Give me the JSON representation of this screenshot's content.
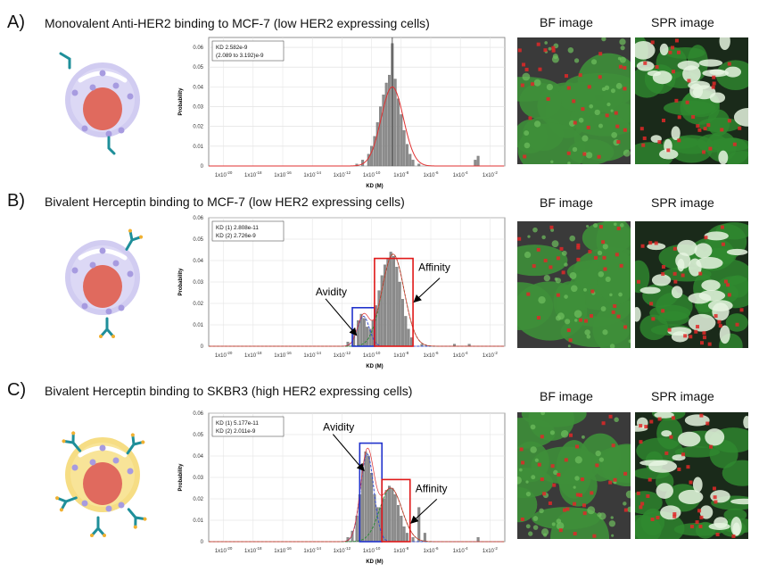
{
  "colors": {
    "hist": "#8c8c8c",
    "fit_total": "#e03030",
    "fit_green": "#2e8b3a",
    "fit_blue": "#3a4fd0",
    "box_red": "#e01818",
    "box_blue": "#2233cc",
    "bf_green": "#3e8f3a",
    "cell_purple": "#c9c3ee",
    "cell_yellow": "#f5d76e",
    "nucleus": "#e06a5e",
    "antibody": "#1f8f9a"
  },
  "labels": {
    "bf": "BF image",
    "spr": "SPR image",
    "xlabel": "KD (M)",
    "ylabel": "Probability"
  },
  "panels": [
    {
      "letter": "A)",
      "title": "Monovalent Anti-HER2 binding to MCF-7 (low HER2 expressing cells)",
      "legend": [
        "KD 2.582e-9",
        "(2.089 to 3.192)e-9"
      ],
      "cell": "purple-monovalent"
    },
    {
      "letter": "B)",
      "title": "Bivalent Herceptin binding to MCF-7 (low HER2 expressing cells)",
      "legend": [
        "KD (1) 2.808e-11",
        "KD (2) 2.726e-9"
      ],
      "annotations": [
        "Avidity",
        "Affinity"
      ],
      "cell": "purple-bivalent"
    },
    {
      "letter": "C)",
      "title": "Bivalent Herceptin binding to SKBR3 (high HER2 expressing cells)",
      "legend": [
        "KD (1) 5.177e-11",
        "KD (2) 2.011e-9"
      ],
      "annotations": [
        "Avidity",
        "Affinity"
      ],
      "cell": "yellow-bivalent"
    }
  ],
  "chart_data": [
    {
      "type": "bar",
      "xscale": "log10",
      "x_tick_exponents": [
        -20,
        -18,
        -16,
        -14,
        -12,
        -10,
        -8,
        -6,
        -4,
        -2
      ],
      "xlabel": "KD (M)",
      "ylabel": "Probability",
      "ylim": [
        0,
        0.065
      ],
      "y_ticks": [
        0,
        0.01,
        0.02,
        0.03,
        0.04,
        0.05,
        0.06
      ],
      "grid": true,
      "legend_position": "top-left",
      "fits": [
        {
          "color": "red",
          "mu_log10": -8.6,
          "sigma_log10": 0.75,
          "peak": 0.04
        }
      ],
      "marker_line_log10": -8.6,
      "bins": [
        {
          "log10_kd": -11.0,
          "p": 0.001
        },
        {
          "log10_kd": -10.6,
          "p": 0.003
        },
        {
          "log10_kd": -10.2,
          "p": 0.006
        },
        {
          "log10_kd": -10.0,
          "p": 0.01
        },
        {
          "log10_kd": -9.8,
          "p": 0.015
        },
        {
          "log10_kd": -9.6,
          "p": 0.022
        },
        {
          "log10_kd": -9.4,
          "p": 0.03
        },
        {
          "log10_kd": -9.2,
          "p": 0.036
        },
        {
          "log10_kd": -9.0,
          "p": 0.042
        },
        {
          "log10_kd": -8.8,
          "p": 0.046
        },
        {
          "log10_kd": -8.6,
          "p": 0.062
        },
        {
          "log10_kd": -8.4,
          "p": 0.044
        },
        {
          "log10_kd": -8.2,
          "p": 0.034
        },
        {
          "log10_kd": -8.0,
          "p": 0.026
        },
        {
          "log10_kd": -7.8,
          "p": 0.018
        },
        {
          "log10_kd": -7.6,
          "p": 0.011
        },
        {
          "log10_kd": -7.4,
          "p": 0.006
        },
        {
          "log10_kd": -7.2,
          "p": 0.003
        },
        {
          "log10_kd": -6.8,
          "p": 0.001
        },
        {
          "log10_kd": -3.0,
          "p": 0.003
        },
        {
          "log10_kd": -2.8,
          "p": 0.005
        }
      ]
    },
    {
      "type": "bar",
      "xscale": "log10",
      "x_tick_exponents": [
        -20,
        -18,
        -16,
        -14,
        -12,
        -10,
        -8,
        -6,
        -4,
        -2
      ],
      "xlabel": "KD (M)",
      "ylabel": "Probability",
      "ylim": [
        0,
        0.06
      ],
      "y_ticks": [
        0,
        0.01,
        0.02,
        0.03,
        0.04,
        0.05,
        0.06
      ],
      "grid": true,
      "legend_position": "top-left",
      "fits": [
        {
          "color": "blue",
          "mu_log10": -10.55,
          "sigma_log10": 0.4,
          "peak": 0.014
        },
        {
          "color": "green",
          "mu_log10": -8.55,
          "sigma_log10": 0.75,
          "peak": 0.043
        }
      ],
      "boxes": [
        {
          "color": "blue",
          "x0_log10": -11.3,
          "x1_log10": -9.8,
          "y_top": 0.018
        },
        {
          "color": "red",
          "x0_log10": -9.8,
          "x1_log10": -7.2,
          "y_top": 0.041
        }
      ],
      "bins": [
        {
          "log10_kd": -11.6,
          "p": 0.002
        },
        {
          "log10_kd": -11.2,
          "p": 0.006
        },
        {
          "log10_kd": -10.9,
          "p": 0.012
        },
        {
          "log10_kd": -10.7,
          "p": 0.015
        },
        {
          "log10_kd": -10.5,
          "p": 0.013
        },
        {
          "log10_kd": -10.3,
          "p": 0.009
        },
        {
          "log10_kd": -10.1,
          "p": 0.008
        },
        {
          "log10_kd": -9.9,
          "p": 0.012
        },
        {
          "log10_kd": -9.7,
          "p": 0.019
        },
        {
          "log10_kd": -9.5,
          "p": 0.026
        },
        {
          "log10_kd": -9.3,
          "p": 0.033
        },
        {
          "log10_kd": -9.1,
          "p": 0.038
        },
        {
          "log10_kd": -8.9,
          "p": 0.041
        },
        {
          "log10_kd": -8.7,
          "p": 0.044
        },
        {
          "log10_kd": -8.5,
          "p": 0.042
        },
        {
          "log10_kd": -8.3,
          "p": 0.037
        },
        {
          "log10_kd": -8.1,
          "p": 0.03
        },
        {
          "log10_kd": -7.9,
          "p": 0.022
        },
        {
          "log10_kd": -7.7,
          "p": 0.014
        },
        {
          "log10_kd": -7.5,
          "p": 0.008
        },
        {
          "log10_kd": -7.3,
          "p": 0.004
        },
        {
          "log10_kd": -6.6,
          "p": 0.001
        },
        {
          "log10_kd": -4.4,
          "p": 0.001
        },
        {
          "log10_kd": -3.4,
          "p": 0.001
        }
      ]
    },
    {
      "type": "bar",
      "xscale": "log10",
      "x_tick_exponents": [
        -20,
        -18,
        -16,
        -14,
        -12,
        -10,
        -8,
        -6,
        -4,
        -2
      ],
      "xlabel": "KD (M)",
      "ylabel": "Probability",
      "ylim": [
        0,
        0.06
      ],
      "y_ticks": [
        0,
        0.01,
        0.02,
        0.03,
        0.04,
        0.05,
        0.06
      ],
      "grid": true,
      "legend_position": "top-left",
      "fits": [
        {
          "color": "blue",
          "mu_log10": -10.3,
          "sigma_log10": 0.45,
          "peak": 0.041
        },
        {
          "color": "green",
          "mu_log10": -8.7,
          "sigma_log10": 0.75,
          "peak": 0.025
        }
      ],
      "boxes": [
        {
          "color": "blue",
          "x0_log10": -10.8,
          "x1_log10": -9.3,
          "y_top": 0.046
        },
        {
          "color": "red",
          "x0_log10": -9.3,
          "x1_log10": -7.4,
          "y_top": 0.029
        }
      ],
      "bins": [
        {
          "log10_kd": -11.6,
          "p": 0.002
        },
        {
          "log10_kd": -11.3,
          "p": 0.005
        },
        {
          "log10_kd": -11.0,
          "p": 0.012
        },
        {
          "log10_kd": -10.8,
          "p": 0.022
        },
        {
          "log10_kd": -10.6,
          "p": 0.034
        },
        {
          "log10_kd": -10.4,
          "p": 0.042
        },
        {
          "log10_kd": -10.2,
          "p": 0.04
        },
        {
          "log10_kd": -10.0,
          "p": 0.032
        },
        {
          "log10_kd": -9.8,
          "p": 0.022
        },
        {
          "log10_kd": -9.6,
          "p": 0.016
        },
        {
          "log10_kd": -9.4,
          "p": 0.016
        },
        {
          "log10_kd": -9.2,
          "p": 0.02
        },
        {
          "log10_kd": -9.0,
          "p": 0.024
        },
        {
          "log10_kd": -8.8,
          "p": 0.026
        },
        {
          "log10_kd": -8.6,
          "p": 0.025
        },
        {
          "log10_kd": -8.4,
          "p": 0.022
        },
        {
          "log10_kd": -8.2,
          "p": 0.017
        },
        {
          "log10_kd": -8.0,
          "p": 0.012
        },
        {
          "log10_kd": -7.8,
          "p": 0.007
        },
        {
          "log10_kd": -7.6,
          "p": 0.004
        },
        {
          "log10_kd": -7.2,
          "p": 0.002
        },
        {
          "log10_kd": -6.8,
          "p": 0.016
        },
        {
          "log10_kd": -6.4,
          "p": 0.004
        },
        {
          "log10_kd": -2.8,
          "p": 0.002
        }
      ]
    }
  ]
}
